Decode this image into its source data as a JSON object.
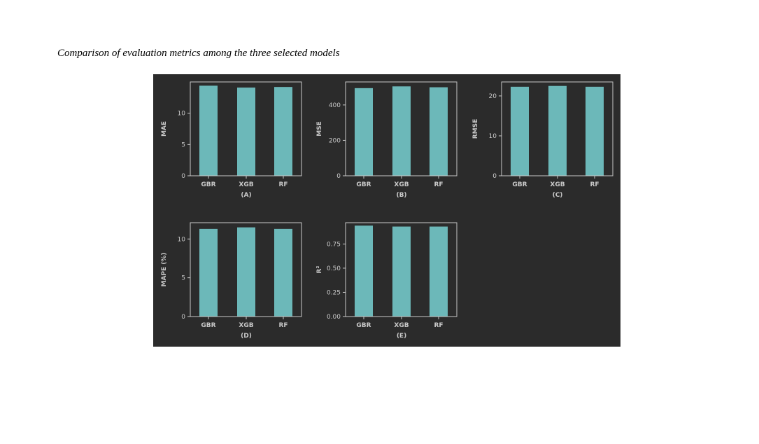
{
  "caption": "Comparison of evaluation metrics among the three selected models",
  "colors": {
    "figure_bg": "#2b2b2b",
    "bar": "#6cb8b9",
    "axis": "#c8c8c8",
    "text": "#c8c8c8"
  },
  "chart_data": [
    {
      "type": "bar",
      "categories": [
        "GBR",
        "XGB",
        "RF"
      ],
      "values": [
        14.4,
        14.1,
        14.2
      ],
      "xlabel": "(A)",
      "ylabel": "MAE",
      "ylim": [
        0,
        15
      ],
      "yticks": [
        "0",
        "5",
        "10"
      ],
      "grid": false
    },
    {
      "type": "bar",
      "categories": [
        "GBR",
        "XGB",
        "RF"
      ],
      "values": [
        495,
        505,
        500
      ],
      "xlabel": "(B)",
      "ylabel": "MSE",
      "ylim": [
        0,
        530
      ],
      "yticks": [
        "0",
        "200",
        "400"
      ],
      "grid": false
    },
    {
      "type": "bar",
      "categories": [
        "GBR",
        "XGB",
        "RF"
      ],
      "values": [
        22.3,
        22.5,
        22.3
      ],
      "xlabel": "(C)",
      "ylabel": "RMSE",
      "ylim": [
        0,
        23.5
      ],
      "yticks": [
        "0",
        "10",
        "20"
      ],
      "grid": false
    },
    {
      "type": "bar",
      "categories": [
        "GBR",
        "XGB",
        "RF"
      ],
      "values": [
        11.3,
        11.5,
        11.3
      ],
      "xlabel": "(D)",
      "ylabel": "MAPE (%)",
      "ylim": [
        0,
        12.1
      ],
      "yticks": [
        "0",
        "5",
        "10"
      ],
      "grid": false
    },
    {
      "type": "bar",
      "categories": [
        "GBR",
        "XGB",
        "RF"
      ],
      "values": [
        0.94,
        0.93,
        0.93
      ],
      "xlabel": "(E)",
      "ylabel": "R²",
      "ylim": [
        0,
        0.97
      ],
      "yticks": [
        "0.00",
        "0.25",
        "0.50",
        "0.75"
      ],
      "grid": false
    }
  ]
}
